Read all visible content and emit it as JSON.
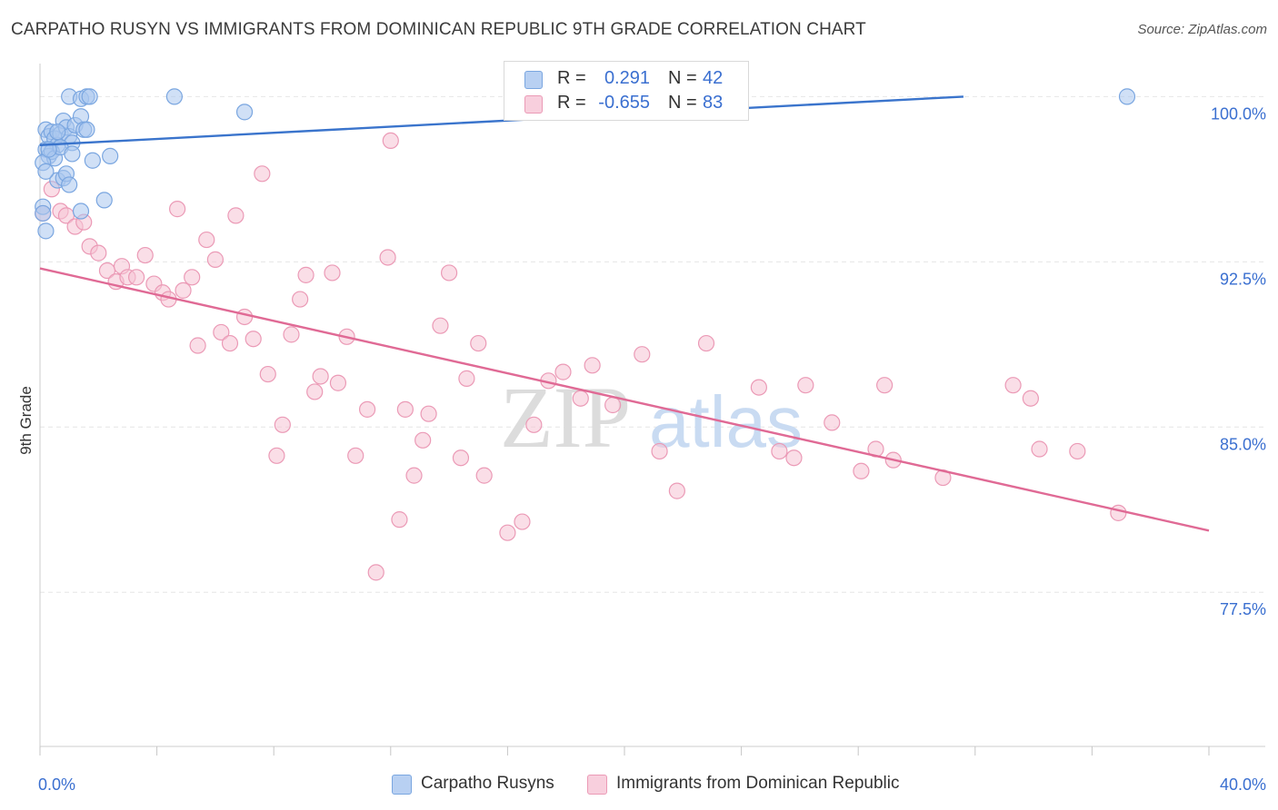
{
  "title": "CARPATHO RUSYN VS IMMIGRANTS FROM DOMINICAN REPUBLIC 9TH GRADE CORRELATION CHART",
  "source": "Source: ZipAtlas.com",
  "watermark": {
    "zip": "ZIP",
    "atlas": "atlas"
  },
  "legend_stats": {
    "r_label": "R =",
    "n_label": "N =",
    "series1": {
      "r": "0.291",
      "n": "42"
    },
    "series2": {
      "r": "-0.655",
      "n": "83"
    }
  },
  "colors": {
    "blue_fill": "#a9c6ee",
    "blue_stroke": "#7aa6e0",
    "blue_line": "#3a74cc",
    "pink_fill": "#f6c3d4",
    "pink_stroke": "#eb9ab6",
    "pink_line": "#e06a95",
    "axis_label": "#3a6fd0",
    "grid": "#e6e6e6"
  },
  "chart_data": {
    "type": "scatter",
    "title": "CARPATHO RUSYN VS IMMIGRANTS FROM DOMINICAN REPUBLIC 9TH GRADE CORRELATION CHART",
    "xlabel": "",
    "ylabel": "9th Grade",
    "xlim": [
      0,
      40
    ],
    "ylim": [
      70.5,
      101.5
    ],
    "x_tick_labels": [
      {
        "value": 0,
        "label": "0.0%"
      },
      {
        "value": 40,
        "label": "40.0%"
      }
    ],
    "x_minor_ticks": [
      0,
      4,
      8,
      12,
      16,
      20,
      24,
      28,
      32,
      36,
      40
    ],
    "y_ticks": [
      {
        "value": 100,
        "label": "100.0%"
      },
      {
        "value": 92.5,
        "label": "92.5%"
      },
      {
        "value": 85,
        "label": "85.0%"
      },
      {
        "value": 77.5,
        "label": "77.5%"
      }
    ],
    "grid": true,
    "legend_position": "top-center",
    "series": [
      {
        "name": "Carpatho Rusyns",
        "color": "blue",
        "trend": {
          "x": [
            0,
            31.6
          ],
          "y": [
            97.8,
            100.0
          ]
        },
        "points": [
          {
            "x": 0.2,
            "y": 98.5
          },
          {
            "x": 0.3,
            "y": 98.2
          },
          {
            "x": 0.4,
            "y": 98.4
          },
          {
            "x": 0.5,
            "y": 98.1
          },
          {
            "x": 0.6,
            "y": 97.8
          },
          {
            "x": 0.7,
            "y": 98.3
          },
          {
            "x": 0.8,
            "y": 98.9
          },
          {
            "x": 0.9,
            "y": 98.6
          },
          {
            "x": 1.0,
            "y": 98.2
          },
          {
            "x": 1.1,
            "y": 97.9
          },
          {
            "x": 1.2,
            "y": 98.7
          },
          {
            "x": 1.4,
            "y": 99.1
          },
          {
            "x": 1.5,
            "y": 98.5
          },
          {
            "x": 1.6,
            "y": 98.5
          },
          {
            "x": 0.2,
            "y": 97.6
          },
          {
            "x": 0.3,
            "y": 97.3
          },
          {
            "x": 0.4,
            "y": 97.5
          },
          {
            "x": 0.5,
            "y": 97.2
          },
          {
            "x": 0.6,
            "y": 96.2
          },
          {
            "x": 0.7,
            "y": 97.7
          },
          {
            "x": 0.8,
            "y": 96.3
          },
          {
            "x": 0.9,
            "y": 96.5
          },
          {
            "x": 1.0,
            "y": 96.0
          },
          {
            "x": 1.1,
            "y": 97.4
          },
          {
            "x": 1.4,
            "y": 94.8
          },
          {
            "x": 1.8,
            "y": 97.1
          },
          {
            "x": 2.4,
            "y": 97.3
          },
          {
            "x": 0.1,
            "y": 97.0
          },
          {
            "x": 0.2,
            "y": 96.6
          },
          {
            "x": 0.1,
            "y": 95.0
          },
          {
            "x": 0.1,
            "y": 94.7
          },
          {
            "x": 0.2,
            "y": 93.9
          },
          {
            "x": 1.0,
            "y": 100.0
          },
          {
            "x": 1.4,
            "y": 99.9
          },
          {
            "x": 1.6,
            "y": 100.0
          },
          {
            "x": 1.7,
            "y": 100.0
          },
          {
            "x": 4.6,
            "y": 100.0
          },
          {
            "x": 7.0,
            "y": 99.3
          },
          {
            "x": 37.2,
            "y": 100.0
          },
          {
            "x": 2.2,
            "y": 95.3
          },
          {
            "x": 0.3,
            "y": 97.6
          },
          {
            "x": 0.6,
            "y": 98.4
          }
        ]
      },
      {
        "name": "Immigrants from Dominican Republic",
        "color": "pink",
        "trend": {
          "x": [
            0,
            40
          ],
          "y": [
            92.2,
            80.3
          ]
        },
        "points": [
          {
            "x": 0.1,
            "y": 94.7
          },
          {
            "x": 0.4,
            "y": 95.8
          },
          {
            "x": 0.7,
            "y": 94.8
          },
          {
            "x": 0.9,
            "y": 94.6
          },
          {
            "x": 1.2,
            "y": 94.1
          },
          {
            "x": 1.5,
            "y": 94.3
          },
          {
            "x": 1.7,
            "y": 93.2
          },
          {
            "x": 2.0,
            "y": 92.9
          },
          {
            "x": 2.3,
            "y": 92.1
          },
          {
            "x": 2.6,
            "y": 91.6
          },
          {
            "x": 2.8,
            "y": 92.3
          },
          {
            "x": 3.0,
            "y": 91.8
          },
          {
            "x": 3.3,
            "y": 91.8
          },
          {
            "x": 3.6,
            "y": 92.8
          },
          {
            "x": 3.9,
            "y": 91.5
          },
          {
            "x": 4.2,
            "y": 91.1
          },
          {
            "x": 4.4,
            "y": 90.8
          },
          {
            "x": 4.7,
            "y": 94.9
          },
          {
            "x": 4.9,
            "y": 91.2
          },
          {
            "x": 5.2,
            "y": 91.8
          },
          {
            "x": 5.4,
            "y": 88.7
          },
          {
            "x": 5.7,
            "y": 93.5
          },
          {
            "x": 6.0,
            "y": 92.6
          },
          {
            "x": 6.2,
            "y": 89.3
          },
          {
            "x": 6.5,
            "y": 88.8
          },
          {
            "x": 6.7,
            "y": 94.6
          },
          {
            "x": 7.0,
            "y": 90.0
          },
          {
            "x": 7.3,
            "y": 89.0
          },
          {
            "x": 7.6,
            "y": 96.5
          },
          {
            "x": 7.8,
            "y": 87.4
          },
          {
            "x": 8.1,
            "y": 83.7
          },
          {
            "x": 8.3,
            "y": 85.1
          },
          {
            "x": 8.6,
            "y": 89.2
          },
          {
            "x": 8.9,
            "y": 90.8
          },
          {
            "x": 9.1,
            "y": 91.9
          },
          {
            "x": 9.4,
            "y": 86.6
          },
          {
            "x": 9.6,
            "y": 87.3
          },
          {
            "x": 10.0,
            "y": 92.0
          },
          {
            "x": 10.2,
            "y": 87.0
          },
          {
            "x": 10.5,
            "y": 89.1
          },
          {
            "x": 10.8,
            "y": 83.7
          },
          {
            "x": 11.2,
            "y": 85.8
          },
          {
            "x": 11.5,
            "y": 78.4
          },
          {
            "x": 11.9,
            "y": 92.7
          },
          {
            "x": 12.0,
            "y": 98.0
          },
          {
            "x": 12.3,
            "y": 80.8
          },
          {
            "x": 12.5,
            "y": 85.8
          },
          {
            "x": 12.8,
            "y": 82.8
          },
          {
            "x": 13.1,
            "y": 84.4
          },
          {
            "x": 13.3,
            "y": 85.6
          },
          {
            "x": 13.7,
            "y": 89.6
          },
          {
            "x": 14.0,
            "y": 92.0
          },
          {
            "x": 14.4,
            "y": 83.6
          },
          {
            "x": 14.6,
            "y": 87.2
          },
          {
            "x": 15.0,
            "y": 88.8
          },
          {
            "x": 15.2,
            "y": 82.8
          },
          {
            "x": 16.0,
            "y": 80.2
          },
          {
            "x": 16.5,
            "y": 80.7
          },
          {
            "x": 16.9,
            "y": 85.1
          },
          {
            "x": 17.4,
            "y": 87.1
          },
          {
            "x": 17.9,
            "y": 87.5
          },
          {
            "x": 18.5,
            "y": 86.3
          },
          {
            "x": 18.9,
            "y": 87.8
          },
          {
            "x": 19.6,
            "y": 86.0
          },
          {
            "x": 20.6,
            "y": 88.3
          },
          {
            "x": 21.2,
            "y": 83.9
          },
          {
            "x": 21.8,
            "y": 82.1
          },
          {
            "x": 22.8,
            "y": 88.8
          },
          {
            "x": 24.6,
            "y": 86.8
          },
          {
            "x": 25.3,
            "y": 83.9
          },
          {
            "x": 25.8,
            "y": 83.6
          },
          {
            "x": 26.2,
            "y": 86.9
          },
          {
            "x": 27.1,
            "y": 85.2
          },
          {
            "x": 28.1,
            "y": 83.0
          },
          {
            "x": 28.6,
            "y": 84.0
          },
          {
            "x": 28.9,
            "y": 86.9
          },
          {
            "x": 29.2,
            "y": 83.5
          },
          {
            "x": 30.9,
            "y": 82.7
          },
          {
            "x": 33.3,
            "y": 86.9
          },
          {
            "x": 33.9,
            "y": 86.3
          },
          {
            "x": 34.2,
            "y": 84.0
          },
          {
            "x": 35.5,
            "y": 83.9
          },
          {
            "x": 36.9,
            "y": 81.1
          }
        ]
      }
    ]
  }
}
